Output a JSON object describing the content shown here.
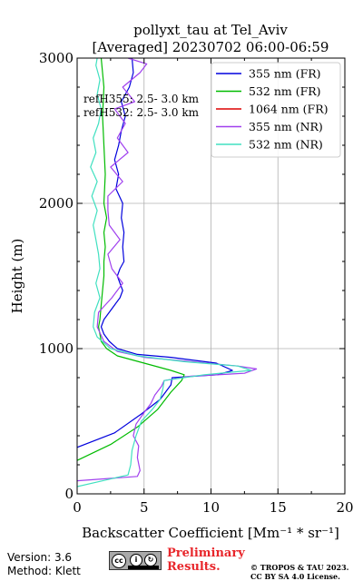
{
  "chart_data": {
    "type": "line",
    "title_line1": "pollyxt_tau at Tel_Aviv",
    "title_line2": "[Averaged] 20230702 06:00-06:59",
    "xlabel": "Backscatter Coefficient [Mm⁻¹ * sr⁻¹]",
    "ylabel": "Height (m)",
    "xlim": [
      0,
      20
    ],
    "ylim": [
      0,
      3000
    ],
    "xticks": [
      0,
      5,
      10,
      15,
      20
    ],
    "yticks": [
      0,
      1000,
      2000,
      3000
    ],
    "grid": true,
    "legend_position": "top-right",
    "annotations": [
      "refH355:  2.5- 3.0 km",
      "refH532:  2.5- 3.0 km"
    ],
    "series": [
      {
        "name": "355 nm (FR)",
        "color": "#0000dd",
        "points": [
          [
            -2,
            280
          ],
          [
            0,
            320
          ],
          [
            2.8,
            420
          ],
          [
            4.8,
            550
          ],
          [
            6.2,
            650
          ],
          [
            7.0,
            750
          ],
          [
            7.1,
            800
          ],
          [
            10.5,
            820
          ],
          [
            11.6,
            850
          ],
          [
            10.4,
            900
          ],
          [
            7.0,
            940
          ],
          [
            4.5,
            960
          ],
          [
            3.0,
            1000
          ],
          [
            2.4,
            1050
          ],
          [
            2.0,
            1100
          ],
          [
            1.8,
            1150
          ],
          [
            2.0,
            1200
          ],
          [
            2.4,
            1250
          ],
          [
            2.8,
            1300
          ],
          [
            3.2,
            1350
          ],
          [
            3.4,
            1400
          ],
          [
            3.2,
            1450
          ],
          [
            3.0,
            1500
          ],
          [
            3.2,
            1550
          ],
          [
            3.5,
            1600
          ],
          [
            3.4,
            1700
          ],
          [
            3.5,
            1800
          ],
          [
            3.3,
            1900
          ],
          [
            3.4,
            2000
          ],
          [
            2.9,
            2100
          ],
          [
            3.1,
            2200
          ],
          [
            2.8,
            2300
          ],
          [
            3.1,
            2400
          ],
          [
            3.3,
            2500
          ],
          [
            3.6,
            2600
          ],
          [
            3.3,
            2700
          ],
          [
            3.9,
            2800
          ],
          [
            4.2,
            2900
          ],
          [
            4.1,
            3000
          ]
        ]
      },
      {
        "name": "532 nm (FR)",
        "color": "#00bb00",
        "points": [
          [
            -2,
            180
          ],
          [
            0,
            230
          ],
          [
            2.5,
            340
          ],
          [
            4.5,
            460
          ],
          [
            6.0,
            580
          ],
          [
            7.0,
            700
          ],
          [
            7.8,
            780
          ],
          [
            8.0,
            820
          ],
          [
            7.0,
            850
          ],
          [
            5.0,
            900
          ],
          [
            3.0,
            950
          ],
          [
            2.2,
            1000
          ],
          [
            1.8,
            1050
          ],
          [
            1.7,
            1100
          ],
          [
            1.6,
            1150
          ],
          [
            1.7,
            1200
          ],
          [
            1.8,
            1300
          ],
          [
            1.9,
            1400
          ],
          [
            2.0,
            1500
          ],
          [
            2.0,
            1600
          ],
          [
            2.1,
            1700
          ],
          [
            2.0,
            1800
          ],
          [
            2.2,
            1900
          ],
          [
            2.0,
            2000
          ],
          [
            2.1,
            2200
          ],
          [
            2.0,
            2400
          ],
          [
            1.9,
            2600
          ],
          [
            2.0,
            2800
          ],
          [
            1.9,
            2900
          ],
          [
            1.8,
            3000
          ]
        ]
      },
      {
        "name": "1064 nm (FR)",
        "color": "#dd0000",
        "points": []
      },
      {
        "name": "355 nm (NR)",
        "color": "#a040ee",
        "points": [
          [
            -2,
            80
          ],
          [
            0,
            90
          ],
          [
            4.5,
            120
          ],
          [
            4.7,
            160
          ],
          [
            4.5,
            250
          ],
          [
            4.6,
            330
          ],
          [
            4.2,
            400
          ],
          [
            4.4,
            480
          ],
          [
            5.0,
            560
          ],
          [
            5.5,
            620
          ],
          [
            5.8,
            680
          ],
          [
            6.3,
            740
          ],
          [
            6.5,
            780
          ],
          [
            8.5,
            810
          ],
          [
            12.5,
            830
          ],
          [
            13.4,
            860
          ],
          [
            12.0,
            880
          ],
          [
            8.5,
            910
          ],
          [
            5.0,
            940
          ],
          [
            3.0,
            980
          ],
          [
            2.0,
            1050
          ],
          [
            1.5,
            1150
          ],
          [
            1.6,
            1250
          ],
          [
            2.6,
            1350
          ],
          [
            3.4,
            1450
          ],
          [
            2.6,
            1550
          ],
          [
            2.3,
            1650
          ],
          [
            3.2,
            1750
          ],
          [
            2.4,
            1850
          ],
          [
            2.3,
            1950
          ],
          [
            2.3,
            2050
          ],
          [
            3.4,
            2150
          ],
          [
            2.5,
            2250
          ],
          [
            3.8,
            2350
          ],
          [
            3.0,
            2450
          ],
          [
            3.6,
            2550
          ],
          [
            2.8,
            2650
          ],
          [
            4.3,
            2700
          ],
          [
            3.4,
            2800
          ],
          [
            4.7,
            2900
          ],
          [
            5.2,
            2960
          ],
          [
            3.8,
            3000
          ]
        ]
      },
      {
        "name": "532 nm (NR)",
        "color": "#40e0c0",
        "points": [
          [
            -2,
            40
          ],
          [
            0,
            50
          ],
          [
            3.8,
            130
          ],
          [
            4.0,
            200
          ],
          [
            4.1,
            300
          ],
          [
            4.4,
            400
          ],
          [
            4.8,
            500
          ],
          [
            5.6,
            580
          ],
          [
            6.2,
            650
          ],
          [
            6.4,
            720
          ],
          [
            6.5,
            780
          ],
          [
            9.5,
            820
          ],
          [
            13.0,
            850
          ],
          [
            12.0,
            880
          ],
          [
            8.0,
            910
          ],
          [
            4.5,
            950
          ],
          [
            2.5,
            1000
          ],
          [
            1.5,
            1080
          ],
          [
            1.2,
            1150
          ],
          [
            1.3,
            1250
          ],
          [
            1.7,
            1350
          ],
          [
            1.4,
            1450
          ],
          [
            1.7,
            1550
          ],
          [
            1.6,
            1650
          ],
          [
            1.4,
            1750
          ],
          [
            1.2,
            1850
          ],
          [
            1.5,
            1950
          ],
          [
            1.1,
            2050
          ],
          [
            1.5,
            2150
          ],
          [
            1.0,
            2250
          ],
          [
            1.4,
            2350
          ],
          [
            1.2,
            2450
          ],
          [
            1.6,
            2550
          ],
          [
            1.8,
            2650
          ],
          [
            1.5,
            2750
          ],
          [
            1.7,
            2850
          ],
          [
            1.4,
            2950
          ],
          [
            1.5,
            3000
          ]
        ]
      }
    ]
  },
  "footer": {
    "version": "Version: 3.6",
    "method": "Method: Klett",
    "preliminary_line1": "Preliminary",
    "preliminary_line2": "Results.",
    "copyright_line1": "© TROPOS & TAU 2023.",
    "copyright_line2": "CC BY SA 4.0 License.",
    "license_badge": "cc-by-sa-icon"
  }
}
